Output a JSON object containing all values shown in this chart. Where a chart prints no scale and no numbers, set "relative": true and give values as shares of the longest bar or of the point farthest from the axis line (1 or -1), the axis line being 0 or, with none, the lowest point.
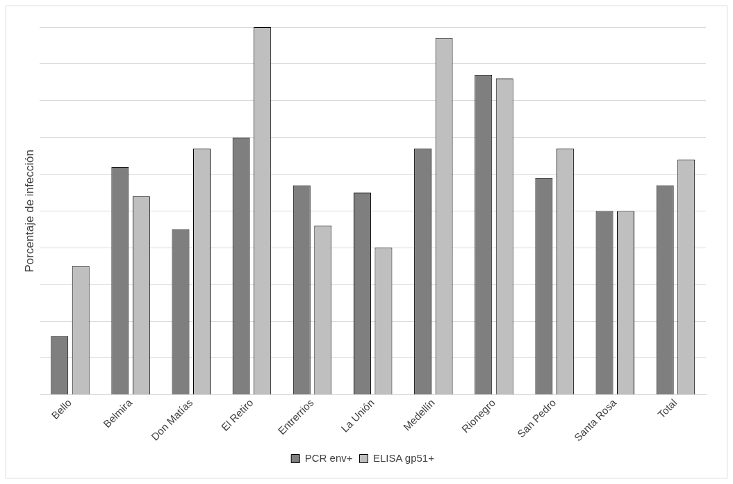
{
  "chart_data": {
    "type": "bar",
    "ylabel": "Porcentaje de infección",
    "categories": [
      "Bello",
      "Belmira",
      "Don Matías",
      "El Retiro",
      "Entrerrios",
      "La Unión",
      "Medellín",
      "Rionegro",
      "San Pedro",
      "Santa Rosa",
      "Total"
    ],
    "relative": true,
    "grid": "y",
    "legend": "bottom",
    "series": [
      {
        "name": "PCR env+",
        "color": "#7f7f7f",
        "values": [
          0.16,
          0.62,
          0.45,
          0.7,
          0.57,
          0.55,
          0.67,
          0.87,
          0.59,
          0.5,
          0.57
        ]
      },
      {
        "name": "ELISA gp51+",
        "color": "#bfbfbf",
        "values": [
          0.35,
          0.54,
          0.67,
          1,
          0.46,
          0.4,
          0.97,
          0.86,
          0.67,
          0.5,
          0.64
        ]
      }
    ]
  }
}
